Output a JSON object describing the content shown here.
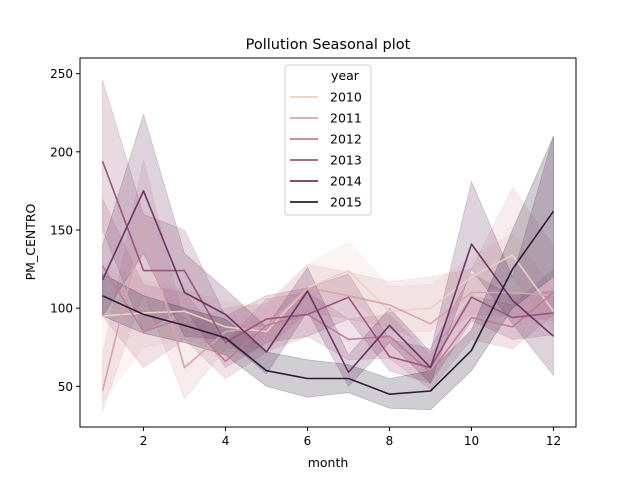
{
  "chart_data": {
    "type": "line",
    "title": "Pollution Seasonal plot",
    "xlabel": "month",
    "ylabel": "PM_CENTRO",
    "xlim": [
      0.45,
      12.55
    ],
    "ylim": [
      24,
      260
    ],
    "xticks": [
      2,
      4,
      6,
      8,
      10,
      12
    ],
    "yticks": [
      50,
      100,
      150,
      200,
      250
    ],
    "grid": false,
    "legend": {
      "title": "year",
      "placement": "top-center"
    },
    "x": [
      1,
      2,
      3,
      4,
      5,
      6,
      7,
      8,
      9,
      10,
      11,
      12
    ],
    "series": [
      {
        "name": "2010",
        "color": "#efcdc5",
        "values": [
          95,
          97,
          98,
          88,
          85,
          113,
          124,
          98,
          100,
          120,
          134,
          98
        ],
        "lower": [
          40,
          75,
          80,
          72,
          72,
          98,
          108,
          85,
          85,
          108,
          120,
          85
        ],
        "upper": [
          128,
          118,
          112,
          104,
          100,
          128,
          142,
          114,
          115,
          133,
          148,
          112
        ]
      },
      {
        "name": "2011",
        "color": "#d8a3ad",
        "values": [
          47,
          153,
          62,
          85,
          88,
          113,
          108,
          102,
          90,
          110,
          110,
          108
        ],
        "lower": [
          34,
          110,
          42,
          74,
          75,
          98,
          93,
          88,
          76,
          96,
          95,
          92
        ],
        "upper": [
          70,
          195,
          90,
          100,
          103,
          128,
          123,
          117,
          120,
          125,
          177,
          140
        ]
      },
      {
        "name": "2012",
        "color": "#c07b96",
        "values": [
          127,
          85,
          94,
          66,
          89,
          96,
          80,
          82,
          59,
          94,
          88,
          110
        ],
        "lower": [
          95,
          62,
          80,
          55,
          72,
          82,
          67,
          68,
          48,
          80,
          74,
          96
        ],
        "upper": [
          170,
          115,
          110,
          78,
          106,
          110,
          93,
          96,
          70,
          108,
          102,
          125
        ]
      },
      {
        "name": "2013",
        "color": "#99557b",
        "values": [
          194,
          124,
          124,
          78,
          93,
          96,
          107,
          69,
          62,
          107,
          94,
          97
        ],
        "lower": [
          150,
          85,
          100,
          62,
          78,
          82,
          93,
          60,
          52,
          92,
          80,
          83
        ],
        "upper": [
          246,
          160,
          150,
          95,
          108,
          113,
          122,
          80,
          74,
          122,
          108,
          111
        ]
      },
      {
        "name": "2014",
        "color": "#6b3562",
        "values": [
          118,
          175,
          110,
          96,
          72,
          111,
          59,
          89,
          62,
          141,
          105,
          82
        ],
        "lower": [
          95,
          135,
          82,
          80,
          58,
          98,
          50,
          78,
          52,
          125,
          90,
          57
        ],
        "upper": [
          140,
          224,
          135,
          112,
          88,
          126,
          70,
          100,
          72,
          181,
          120,
          210
        ]
      },
      {
        "name": "2015",
        "color": "#2b1b37",
        "values": [
          108,
          96,
          89,
          81,
          60,
          55,
          55,
          45,
          47,
          73,
          125,
          162
        ],
        "lower": [
          95,
          84,
          78,
          70,
          50,
          43,
          46,
          36,
          35,
          60,
          100,
          120
        ],
        "upper": [
          122,
          108,
          100,
          93,
          72,
          67,
          64,
          55,
          60,
          86,
          150,
          210
        ]
      }
    ]
  }
}
